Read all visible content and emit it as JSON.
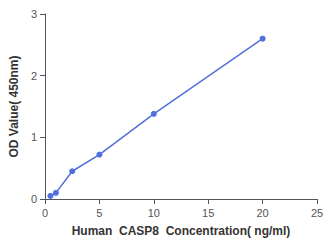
{
  "chart_data": {
    "type": "line",
    "x": [
      0.5,
      1.0,
      2.5,
      5.0,
      10.0,
      20.0
    ],
    "values": [
      0.05,
      0.1,
      0.45,
      0.72,
      1.38,
      2.6
    ],
    "xlabel": "Human  CASP8  Concentration( ng/ml)",
    "ylabel": "OD Value( 450nm)",
    "xlim": [
      0,
      25
    ],
    "ylim": [
      0,
      3
    ],
    "xticks": [
      0,
      5,
      10,
      15,
      20,
      25
    ],
    "yticks": [
      0,
      1,
      2,
      3
    ],
    "marker": "circle",
    "grid": false
  }
}
